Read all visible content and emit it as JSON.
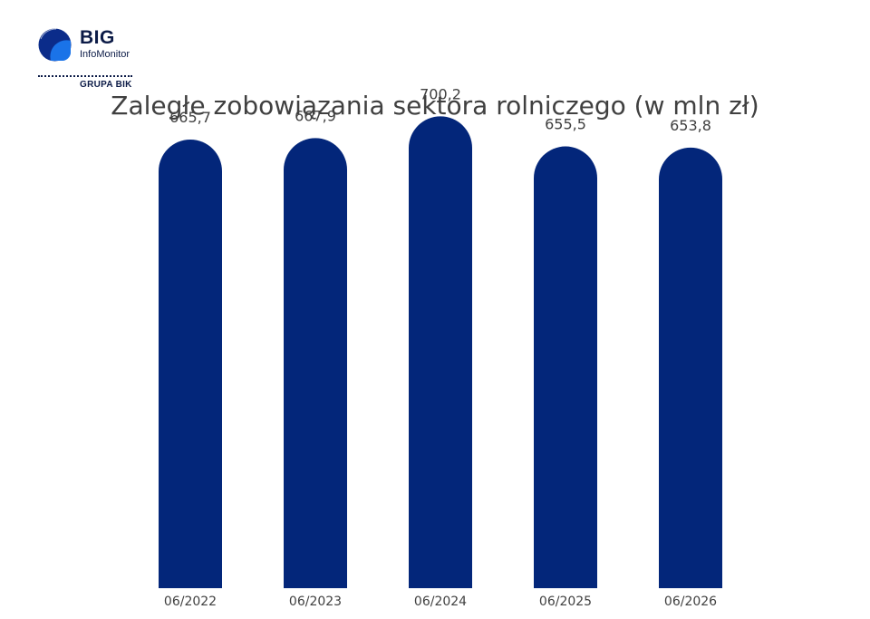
{
  "logo": {
    "brand": "BIG",
    "sub": "InfoMonitor",
    "group": "GRUPA BIK"
  },
  "chart_data": {
    "type": "bar",
    "title": "Zaległe zobowiązania sektora rolniczego (w mln zł)",
    "categories": [
      "06/2022",
      "06/2023",
      "06/2024",
      "06/2025",
      "06/2026"
    ],
    "values": [
      665.7,
      667.9,
      700.2,
      655.5,
      653.8
    ],
    "value_labels": [
      "665,7",
      "667,9",
      "700,2",
      "655,5",
      "653,8"
    ],
    "ylim": [
      0,
      745
    ],
    "grid": false,
    "legend": "none",
    "bar_color": "#03267a"
  }
}
